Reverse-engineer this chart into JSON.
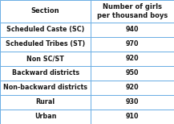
{
  "col1_header": "Section",
  "col2_header": "Number of girls\nper thousand boys",
  "rows": [
    [
      "Scheduled Caste (SC)",
      "940"
    ],
    [
      "Scheduled Tribes (ST)",
      "970"
    ],
    [
      "Non SC/ST",
      "920"
    ],
    [
      "Backward districts",
      "950"
    ],
    [
      "Non-backward districts",
      "920"
    ],
    [
      "Rural",
      "930"
    ],
    [
      "Urban",
      "910"
    ]
  ],
  "bg_color": "#ffffff",
  "header_bg": "#ffffff",
  "border_color": "#6aade4",
  "text_color": "#1a1a1a",
  "header_fontsize": 6.0,
  "cell_fontsize": 5.8
}
